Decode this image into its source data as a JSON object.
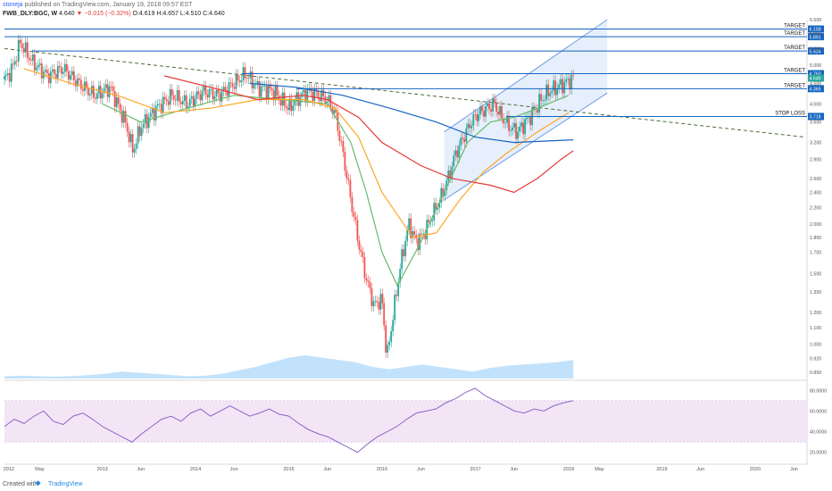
{
  "header": {
    "author": "stoneja",
    "published": "published on TradingView.com, January 19, 2018 09:57 EST",
    "symbol": "FWB_DLY:BGC, W",
    "last": "4.640",
    "change": "−0.015 (−0.32%)",
    "ohlc": "O:4.619 H:4.657 L:4.510 C:4.640"
  },
  "footer": {
    "created_with": "Created with",
    "brand": "TradingView"
  },
  "colors": {
    "up": "#26a69a",
    "down": "#ef5350",
    "ma_fast": "#66bb6a",
    "ma_mid": "#ffa726",
    "ma_slow": "#e53935",
    "ma_long": "#1565c0",
    "level": "#1565c0",
    "channel_fill": "#e3edfb",
    "trend": "#4b6b3a",
    "rsi": "#7e57c2",
    "rsi_band": "#f3e5f5"
  },
  "chart_data": [
    {
      "type": "line",
      "title": "FWB_DLY:BGC, W",
      "y_scale": "log",
      "ylim": [
        0.82,
        6.5
      ],
      "xlim": [
        "2011-12-15",
        "2020-07-15"
      ],
      "x_ticks": [
        {
          "date": "2012-01-01",
          "label": "2012"
        },
        {
          "date": "2012-05-01",
          "label": "May"
        },
        {
          "date": "2013-01-01",
          "label": "2013"
        },
        {
          "date": "2013-06-01",
          "label": "Jun"
        },
        {
          "date": "2014-01-01",
          "label": "2014"
        },
        {
          "date": "2014-06-01",
          "label": "Jun"
        },
        {
          "date": "2015-01-01",
          "label": "2015"
        },
        {
          "date": "2015-06-01",
          "label": "Jun"
        },
        {
          "date": "2016-01-01",
          "label": "2016"
        },
        {
          "date": "2016-06-01",
          "label": "Jun"
        },
        {
          "date": "2017-01-01",
          "label": "2017"
        },
        {
          "date": "2017-06-01",
          "label": "Jun"
        },
        {
          "date": "2018-01-01",
          "label": "2018"
        },
        {
          "date": "2018-05-01",
          "label": "May"
        },
        {
          "date": "2019-01-01",
          "label": "2019"
        },
        {
          "date": "2019-06-01",
          "label": "Jun"
        },
        {
          "date": "2020-01-01",
          "label": "2020"
        },
        {
          "date": "2020-06-01",
          "label": "Jun"
        }
      ],
      "y_ticks": [
        "6.500",
        "6.000",
        "5.500",
        "5.000",
        "4.500",
        "4.000",
        "3.600",
        "3.200",
        "2.900",
        "2.600",
        "2.400",
        "2.200",
        "2.000",
        "1.850",
        "1.700",
        "1.500",
        "1.350",
        "1.200",
        "1.100",
        "1.000",
        "0.920",
        "0.850"
      ],
      "y_tick_values": [
        6.5,
        6.0,
        5.5,
        5.0,
        4.5,
        4.0,
        3.6,
        3.2,
        2.9,
        2.6,
        2.4,
        2.2,
        2.0,
        1.85,
        1.7,
        1.5,
        1.35,
        1.2,
        1.1,
        1.0,
        0.92,
        0.85
      ],
      "levels": [
        {
          "value": 6.158,
          "label": "TARGET",
          "price_label": "6.158",
          "start": "2011-12-15"
        },
        {
          "value": 5.891,
          "label": "TARGET",
          "price_label": "5.891",
          "start": "2011-12-15"
        },
        {
          "value": 5.424,
          "label": "TARGET",
          "price_label": "5.424",
          "start": "2012-04-01"
        },
        {
          "value": 4.76,
          "label": "TARGET",
          "price_label": "4.760",
          "start": "2014-07-01"
        },
        {
          "value": 4.365,
          "label": "TARGET",
          "price_label": "4.365",
          "start": "2015-02-01"
        },
        {
          "value": 3.718,
          "label": "STOP LOSS",
          "price_label": "3.718",
          "start": "2017-05-01"
        }
      ],
      "last_price": {
        "value": 4.64,
        "label": "4.640"
      },
      "price_path": [
        [
          "2011-12-15",
          4.6
        ],
        [
          "2012-01-15",
          4.9
        ],
        [
          "2012-02-15",
          5.7
        ],
        [
          "2012-04-01",
          5.1
        ],
        [
          "2012-06-01",
          4.7
        ],
        [
          "2012-08-01",
          4.9
        ],
        [
          "2012-10-01",
          4.5
        ],
        [
          "2012-12-01",
          4.2
        ],
        [
          "2013-02-01",
          4.4
        ],
        [
          "2013-04-01",
          3.6
        ],
        [
          "2013-05-01",
          3.05
        ],
        [
          "2013-06-01",
          3.5
        ],
        [
          "2013-08-01",
          3.9
        ],
        [
          "2013-10-01",
          4.2
        ],
        [
          "2013-12-01",
          4.0
        ],
        [
          "2014-02-01",
          4.3
        ],
        [
          "2014-04-01",
          4.2
        ],
        [
          "2014-06-01",
          4.5
        ],
        [
          "2014-07-15",
          4.75
        ],
        [
          "2014-09-01",
          4.4
        ],
        [
          "2014-11-01",
          4.3
        ],
        [
          "2015-01-01",
          3.9
        ],
        [
          "2015-02-01",
          4.1
        ],
        [
          "2015-03-15",
          4.3
        ],
        [
          "2015-05-01",
          4.2
        ],
        [
          "2015-06-01",
          4.1
        ],
        [
          "2015-07-01",
          3.8
        ],
        [
          "2015-08-01",
          3.0
        ],
        [
          "2015-09-01",
          2.3
        ],
        [
          "2015-10-01",
          1.8
        ],
        [
          "2015-11-01",
          1.45
        ],
        [
          "2015-12-01",
          1.25
        ],
        [
          "2016-01-01",
          1.3
        ],
        [
          "2016-01-20",
          0.92
        ],
        [
          "2016-02-15",
          1.2
        ],
        [
          "2016-03-15",
          1.6
        ],
        [
          "2016-04-15",
          2.0
        ],
        [
          "2016-05-15",
          1.8
        ],
        [
          "2016-06-15",
          1.9
        ],
        [
          "2016-07-15",
          2.1
        ],
        [
          "2016-08-15",
          2.3
        ],
        [
          "2016-09-15",
          2.6
        ],
        [
          "2016-10-15",
          3.0
        ],
        [
          "2016-11-15",
          3.3
        ],
        [
          "2016-12-15",
          3.6
        ],
        [
          "2017-01-15",
          3.8
        ],
        [
          "2017-02-15",
          3.9
        ],
        [
          "2017-03-15",
          4.0
        ],
        [
          "2017-04-15",
          3.7
        ],
        [
          "2017-05-15",
          3.5
        ],
        [
          "2017-06-15",
          3.4
        ],
        [
          "2017-07-15",
          3.6
        ],
        [
          "2017-08-15",
          3.8
        ],
        [
          "2017-09-15",
          4.1
        ],
        [
          "2017-10-15",
          4.3
        ],
        [
          "2017-11-15",
          4.4
        ],
        [
          "2017-12-15",
          4.5
        ],
        [
          "2018-01-19",
          4.64
        ]
      ],
      "series": [
        {
          "points": [
            [
              "2013-01-01",
              4.0
            ],
            [
              "2013-06-01",
              3.6
            ],
            [
              "2013-12-01",
              3.9
            ],
            [
              "2014-06-01",
              4.2
            ],
            [
              "2014-12-01",
              4.1
            ],
            [
              "2015-06-01",
              4.0
            ],
            [
              "2015-09-01",
              3.2
            ],
            [
              "2015-11-01",
              2.4
            ],
            [
              "2016-01-01",
              1.7
            ],
            [
              "2016-03-01",
              1.4
            ],
            [
              "2016-06-01",
              1.8
            ],
            [
              "2016-09-01",
              2.4
            ],
            [
              "2016-12-01",
              3.2
            ],
            [
              "2017-03-01",
              3.6
            ],
            [
              "2017-06-01",
              3.7
            ],
            [
              "2017-09-01",
              3.9
            ],
            [
              "2018-01-01",
              4.2
            ]
          ]
        },
        {
          "points": [
            [
              "2012-03-01",
              4.9
            ],
            [
              "2012-09-01",
              4.5
            ],
            [
              "2013-03-01",
              4.2
            ],
            [
              "2013-09-01",
              3.8
            ],
            [
              "2014-03-01",
              3.9
            ],
            [
              "2014-09-01",
              4.1
            ],
            [
              "2015-03-01",
              4.1
            ],
            [
              "2015-07-01",
              3.9
            ],
            [
              "2015-10-01",
              3.3
            ],
            [
              "2016-01-01",
              2.4
            ],
            [
              "2016-05-01",
              1.85
            ],
            [
              "2016-08-01",
              1.9
            ],
            [
              "2016-11-01",
              2.3
            ],
            [
              "2017-02-01",
              2.7
            ],
            [
              "2017-05-01",
              3.0
            ],
            [
              "2017-09-01",
              3.4
            ],
            [
              "2018-01-01",
              3.8
            ]
          ]
        },
        {
          "points": [
            [
              "2013-09-01",
              4.7
            ],
            [
              "2014-03-01",
              4.4
            ],
            [
              "2014-09-01",
              4.1
            ],
            [
              "2015-03-01",
              4.2
            ],
            [
              "2015-06-01",
              4.1
            ],
            [
              "2015-10-01",
              3.7
            ],
            [
              "2016-01-01",
              3.2
            ],
            [
              "2016-06-01",
              2.8
            ],
            [
              "2016-10-01",
              2.6
            ],
            [
              "2017-03-01",
              2.5
            ],
            [
              "2017-06-01",
              2.4
            ],
            [
              "2017-09-01",
              2.6
            ],
            [
              "2017-12-01",
              2.9
            ],
            [
              "2018-01-19",
              3.05
            ]
          ]
        },
        {
          "points": [
            [
              "2014-08-01",
              4.5
            ],
            [
              "2015-02-01",
              4.4
            ],
            [
              "2015-08-01",
              4.2
            ],
            [
              "2016-02-01",
              3.9
            ],
            [
              "2016-08-01",
              3.6
            ],
            [
              "2017-01-01",
              3.3
            ],
            [
              "2017-06-01",
              3.2
            ],
            [
              "2018-01-19",
              3.25
            ]
          ]
        }
      ],
      "trend_line": [
        [
          "2011-12-15",
          5.5
        ],
        [
          "2020-07-15",
          3.3
        ]
      ],
      "channel": {
        "lower": [
          [
            "2016-09-01",
            2.3
          ],
          [
            "2018-01-19",
            3.8
          ]
        ],
        "upper": [
          [
            "2016-09-01",
            3.4
          ],
          [
            "2018-01-19",
            5.5
          ]
        ],
        "end": "2018-06-01"
      },
      "volume": [
        0.1,
        0.12,
        0.1,
        0.08,
        0.1,
        0.15,
        0.2,
        0.3,
        0.25,
        0.2,
        0.15,
        0.1,
        0.12,
        0.2,
        0.35,
        0.5,
        0.7,
        0.9,
        1.0,
        0.9,
        0.8,
        0.7,
        0.5,
        0.4,
        0.5,
        0.6,
        0.5,
        0.4,
        0.3,
        0.45,
        0.55,
        0.6,
        0.65,
        0.7,
        0.8
      ]
    },
    {
      "type": "line",
      "title": "",
      "ylim": [
        12,
        88
      ],
      "y_ticks": [
        "80.0000",
        "60.0000",
        "40.0000",
        "20.0000"
      ],
      "y_tick_values": [
        80,
        60,
        40,
        20
      ],
      "band": [
        30,
        70
      ],
      "values": [
        45,
        52,
        48,
        55,
        60,
        50,
        47,
        55,
        58,
        52,
        45,
        40,
        35,
        30,
        38,
        45,
        52,
        55,
        50,
        58,
        62,
        55,
        60,
        65,
        60,
        55,
        58,
        62,
        57,
        55,
        48,
        42,
        38,
        35,
        30,
        25,
        20,
        28,
        35,
        40,
        45,
        52,
        58,
        60,
        62,
        68,
        72,
        78,
        82,
        75,
        70,
        65,
        60,
        58,
        62,
        60,
        65,
        68,
        70
      ]
    }
  ]
}
